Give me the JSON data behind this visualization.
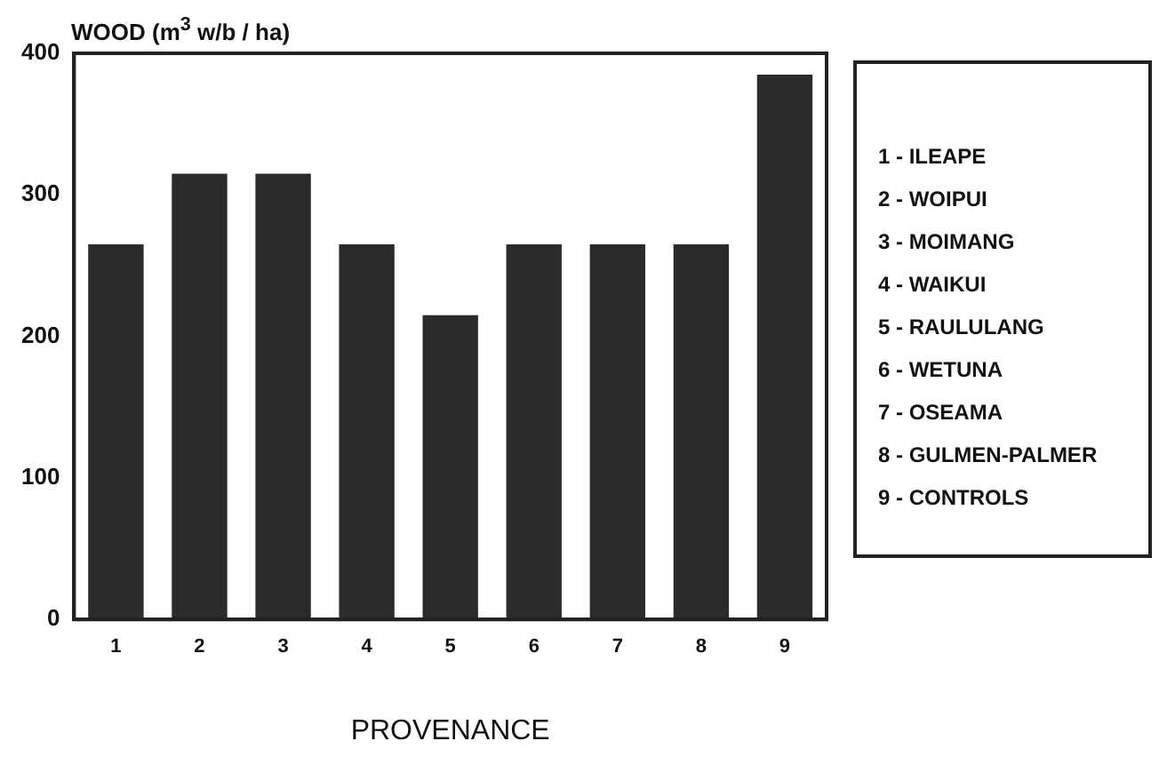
{
  "chart_data": {
    "type": "bar",
    "ylabel": "WOOD (m$^{3}$ w/b / ha)",
    "xlabel": "PROVENANCE",
    "categories": [
      "1",
      "2",
      "3",
      "4",
      "5",
      "6",
      "7",
      "8",
      "9"
    ],
    "values": [
      265,
      315,
      315,
      265,
      215,
      265,
      265,
      265,
      385
    ],
    "color": "#2b2b2b",
    "ylim": [
      0,
      400
    ],
    "yticks": [
      0,
      100,
      200,
      300,
      400
    ],
    "grid": false,
    "legend": false,
    "annotations": [
      "1 - ILEAPE",
      "2 - WOIPUI",
      "3 - MOIMANG",
      "4 - WAIKUI",
      "5 - RAULULANG",
      "6 - WETUNA",
      "7 - OSEAMA",
      "8 - GULMEN-PALMER",
      "9 - CONTROLS"
    ]
  }
}
